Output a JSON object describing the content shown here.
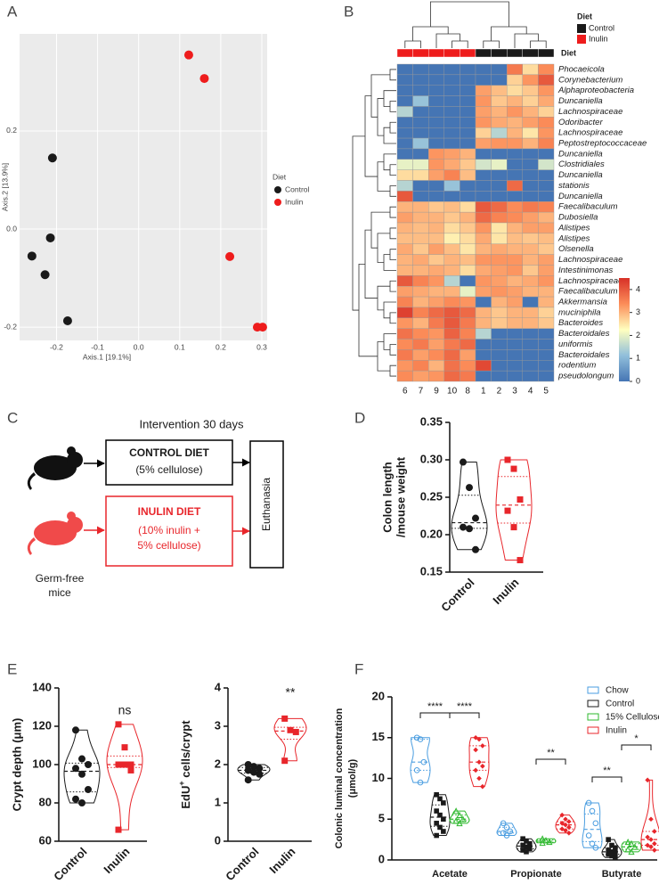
{
  "chart_data": [
    {
      "type": "scatter",
      "panel": "A",
      "xlabel": "Axis.1   [19.1%]",
      "ylabel": "Axis.2   [13.9%]",
      "xlim": [
        -0.29,
        0.313
      ],
      "ylim": [
        -0.227,
        0.398
      ],
      "xticks": [
        -0.2,
        -0.1,
        {
          "value": 0,
          "label": "0.0"
        },
        0.1,
        0.2,
        0.3
      ],
      "yticks": [
        -0.2,
        {
          "value": 0,
          "label": "0.0"
        },
        0.2
      ],
      "grid": true,
      "legend_title": "Diet",
      "series": [
        {
          "name": "Control",
          "color": "#1a1a1a",
          "x": [
            -0.21,
            -0.215,
            -0.26,
            -0.228,
            -0.173
          ],
          "y": [
            0.145,
            -0.018,
            -0.055,
            -0.093,
            -0.187
          ]
        },
        {
          "name": "Inulin",
          "color": "#ee1c1c",
          "x": [
            0.122,
            0.16,
            0.222,
            0.289,
            0.302
          ],
          "y": [
            0.355,
            0.307,
            -0.056,
            -0.2,
            -0.2
          ]
        }
      ]
    },
    {
      "type": "heatmap",
      "panel": "B",
      "legend_title": "Diet",
      "group_label": "Diet",
      "groups": [
        {
          "name": "Control",
          "color": "#1a1a1a"
        },
        {
          "name": "Inulin",
          "color": "#ee1c1c"
        }
      ],
      "columns": [
        "6",
        "7",
        "9",
        "10",
        "8",
        "1",
        "2",
        "3",
        "4",
        "5"
      ],
      "column_groups": [
        "Inulin",
        "Inulin",
        "Inulin",
        "Inulin",
        "Inulin",
        "Control",
        "Control",
        "Control",
        "Control",
        "Control"
      ],
      "rows": [
        "Phocaeicola",
        "Corynebacterium",
        "Alphaproteobacteria",
        "Duncaniella",
        "Lachnospiraceae",
        "Odoribacter",
        "Lachnospiraceae",
        "Peptostreptococcaceae",
        "Duncaniella",
        "Clostridiales",
        "Duncaniella",
        "stationis",
        "Duncaniella",
        "Faecalibaculum",
        "Dubosiella",
        "Alistipes",
        "Alistipes",
        "Olsenella",
        "Lachnospiraceae",
        "Intestinimonas",
        "Lachnospiraceae",
        "Faecalibaculum",
        "Akkermansia",
        "muciniphila",
        "Bacteroides",
        "Bacteroidales",
        "uniformis",
        "Bacteroidales",
        "rodentium",
        "pseudolongum"
      ],
      "values": [
        [
          0,
          0,
          0,
          0,
          0,
          0,
          0,
          3.6,
          2.6,
          3.4
        ],
        [
          0,
          0,
          0,
          0,
          0,
          0,
          0,
          2.7,
          3.3,
          4.0
        ],
        [
          0,
          0,
          0,
          0,
          0,
          3.2,
          2.9,
          2.6,
          2.8,
          3.3
        ],
        [
          0,
          1.2,
          0,
          0,
          0,
          3.3,
          2.8,
          3.0,
          2.7,
          3.1
        ],
        [
          1.5,
          0,
          0,
          0,
          0,
          3.2,
          3.0,
          3.3,
          3.0,
          2.7
        ],
        [
          0,
          0,
          0,
          0,
          0,
          3.3,
          3.1,
          3.0,
          3.2,
          3.4
        ],
        [
          0,
          0,
          0,
          0,
          0,
          2.7,
          1.5,
          3.0,
          2.5,
          3.3
        ],
        [
          0,
          1.2,
          0,
          0,
          0,
          3.2,
          3.3,
          3.3,
          3.0,
          3.5
        ],
        [
          0,
          0,
          3.3,
          3.2,
          3.0,
          0,
          0,
          0,
          0,
          0
        ],
        [
          2.0,
          2.0,
          3.3,
          3.1,
          2.8,
          1.8,
          2.0,
          0,
          0,
          1.8
        ],
        [
          2.6,
          2.6,
          3.2,
          3.5,
          2.9,
          0,
          0,
          0,
          0,
          0
        ],
        [
          1.5,
          0,
          0,
          1.2,
          0,
          0,
          0,
          3.8,
          0,
          0
        ],
        [
          4.0,
          0,
          0,
          0,
          0,
          0,
          0,
          0,
          0,
          0
        ],
        [
          3.0,
          3.0,
          2.8,
          2.9,
          2.6,
          4.0,
          3.8,
          3.4,
          3.6,
          3.5
        ],
        [
          3.2,
          3.0,
          3.0,
          2.8,
          3.0,
          3.8,
          3.5,
          3.4,
          3.2,
          3.0
        ],
        [
          3.0,
          2.9,
          3.0,
          2.6,
          2.8,
          3.3,
          2.5,
          3.0,
          3.2,
          3.2
        ],
        [
          2.9,
          2.9,
          2.9,
          2.4,
          2.6,
          3.1,
          2.5,
          2.9,
          2.8,
          2.9
        ],
        [
          3.1,
          2.8,
          3.2,
          2.9,
          2.5,
          3.0,
          3.1,
          3.0,
          3.0,
          2.8
        ],
        [
          3.0,
          3.1,
          2.8,
          3.0,
          2.9,
          3.3,
          3.3,
          3.3,
          3.0,
          3.2
        ],
        [
          3.0,
          3.0,
          3.1,
          3.0,
          2.6,
          3.1,
          3.2,
          3.3,
          2.8,
          3.2
        ],
        [
          4.0,
          3.5,
          3.3,
          1.5,
          0,
          3.3,
          3.2,
          3.0,
          3.1,
          3.3
        ],
        [
          3.2,
          3.1,
          3.0,
          3.0,
          2.0,
          3.2,
          3.3,
          3.2,
          3.0,
          3.0
        ],
        [
          3.5,
          3.0,
          3.2,
          3.4,
          3.3,
          0,
          3.0,
          3.2,
          0,
          3.0
        ],
        [
          4.3,
          3.5,
          3.8,
          4.0,
          3.8,
          3.0,
          2.8,
          3.0,
          3.0,
          2.7
        ],
        [
          3.3,
          3.0,
          3.6,
          4.0,
          3.6,
          3.0,
          2.8,
          3.0,
          3.0,
          2.8
        ],
        [
          3.7,
          3.4,
          3.3,
          3.9,
          3.5,
          1.5,
          0,
          0,
          0,
          0
        ],
        [
          3.4,
          3.6,
          3.2,
          3.6,
          3.8,
          0,
          0,
          0,
          0,
          0
        ],
        [
          3.6,
          3.2,
          3.4,
          3.8,
          3.2,
          0,
          0,
          0,
          0,
          0
        ],
        [
          3.3,
          3.5,
          3.0,
          3.7,
          3.4,
          4.2,
          0,
          0,
          0,
          0
        ],
        [
          3.4,
          3.2,
          3.3,
          3.8,
          3.6,
          0,
          0,
          0,
          0,
          0
        ]
      ],
      "zlim": [
        0,
        4.5
      ],
      "zticks": [
        0,
        1,
        2,
        3,
        4
      ],
      "colorscale": [
        "#4575b4",
        "#91bfdb",
        "#ffffbf",
        "#fc8d59",
        "#d73027"
      ]
    },
    {
      "type": "violin",
      "panel": "D",
      "ylabel": [
        "Colon length",
        "/mouse weight"
      ],
      "categories": [
        "Control",
        "Inulin"
      ],
      "colors": [
        "#1a1a1a",
        "#e8262b"
      ],
      "markers": [
        "circle",
        "square"
      ],
      "values": [
        [
          0.297,
          0.263,
          0.222,
          0.21,
          0.208,
          0.18
        ],
        [
          0.3,
          0.288,
          0.247,
          0.232,
          0.21,
          0.166
        ]
      ],
      "ylim": [
        0.15,
        0.35
      ],
      "yticks": [
        0.15,
        {
          "value": 0.2,
          "label": "0.20"
        },
        0.25,
        {
          "value": 0.3,
          "label": "0.30"
        },
        0.35
      ]
    },
    {
      "type": "violin",
      "panel": "E",
      "ylabel": "Crypt depth (μm)",
      "annotation": "ns",
      "categories": [
        "Control",
        "Inulin"
      ],
      "colors": [
        "#1a1a1a",
        "#e8262b"
      ],
      "markers": [
        "circle",
        "square"
      ],
      "values": [
        [
          118,
          103,
          100,
          98,
          95,
          87,
          82,
          80
        ],
        [
          121,
          109,
          100,
          100,
          100,
          97,
          66
        ]
      ],
      "ylim": [
        60,
        140
      ],
      "yticks": [
        60,
        80,
        100,
        120,
        140
      ]
    },
    {
      "type": "violin",
      "ylabel": "EdU",
      "ylabel_sup": "+",
      "ylabel_end": " cells/crypt",
      "annotation": "**",
      "categories": [
        "Control",
        "Inulin"
      ],
      "colors": [
        "#1a1a1a",
        "#e8262b"
      ],
      "markers": [
        "circle",
        "square"
      ],
      "values": [
        [
          2.0,
          1.95,
          1.9,
          1.85,
          1.8,
          1.75,
          1.6
        ],
        [
          3.2,
          2.9,
          2.85,
          2.1
        ]
      ],
      "ylim": [
        0,
        4
      ],
      "yticks": [
        0,
        1,
        2,
        3,
        4
      ]
    },
    {
      "type": "violin",
      "panel": "F",
      "ylabel": [
        "Colonic luminal concentration",
        "(μmol/g)"
      ],
      "categories": [
        "Acetate",
        "Propionate",
        "Butyrate"
      ],
      "series": [
        {
          "name": "Chow",
          "color": "#4a9de0",
          "marker": "circle",
          "values": [
            [
              15,
              14.8,
              12,
              11,
              9.5
            ],
            [
              4.5,
              4,
              3.5,
              3.3,
              3.0
            ],
            [
              7,
              6,
              4.5,
              3,
              2,
              1.5
            ]
          ]
        },
        {
          "name": "Control",
          "color": "#1a1a1a",
          "marker": "square",
          "values": [
            [
              8,
              7.5,
              7,
              6,
              5.5,
              5,
              4.5,
              4,
              3.5,
              3
            ],
            [
              2.6,
              2.3,
              2,
              1.8,
              1.6,
              1.4,
              1.2,
              1.0
            ],
            [
              2.5,
              1.8,
              1.5,
              1.2,
              1.0,
              0.9,
              0.7,
              0.5,
              0.3
            ]
          ]
        },
        {
          "name": "15% Cellulose",
          "color": "#2db82d",
          "marker": "triangle",
          "values": [
            [
              6,
              5.5,
              5,
              4.8,
              4.5
            ],
            [
              2.6,
              2.4,
              2.2,
              2.1
            ],
            [
              2.2,
              2.0,
              1.6,
              1.3,
              1.0
            ]
          ]
        },
        {
          "name": "Inulin",
          "color": "#e8262b",
          "marker": "diamond",
          "values": [
            [
              15,
              14.8,
              14,
              13.5,
              12,
              11.5,
              11,
              10,
              9
            ],
            [
              5.5,
              5.0,
              4.7,
              4.5,
              4.3,
              4.0,
              3.8,
              3.6,
              3.3
            ],
            [
              9.8,
              5,
              3.5,
              2.8,
              2.5,
              2,
              1.8,
              1.6,
              1.2
            ]
          ]
        }
      ],
      "annotations": [
        "****",
        "****",
        "**",
        "**",
        "*"
      ],
      "ylim": [
        0,
        20
      ],
      "yticks": [
        0,
        5,
        10,
        15,
        20
      ]
    }
  ],
  "diagram": {
    "label": "C",
    "title": "Intervention 30 days",
    "control": {
      "name": "CONTROL DIET",
      "detail": "(5% cellulose)"
    },
    "inulin": {
      "name": "INULIN DIET",
      "detail": [
        "(10% inulin +",
        "5% cellulose)"
      ]
    },
    "end": "Euthanasia",
    "subjects": [
      "Germ-free",
      "mice"
    ]
  }
}
